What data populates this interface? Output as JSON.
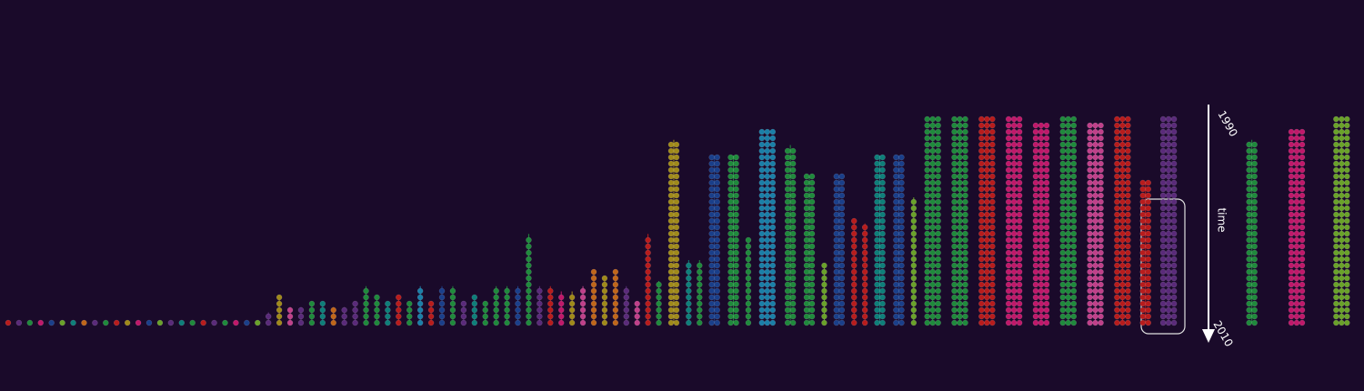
{
  "axis": {
    "label": "time",
    "start": "1990",
    "end": "2010",
    "from": 1990,
    "to": 2010
  },
  "columns": [
    {
      "color": "#b81c1c",
      "start": 2010
    },
    {
      "color": "#5a2a7a",
      "start": 2010
    },
    {
      "color": "#1f8a3c",
      "start": 2010
    },
    {
      "color": "#c0186a",
      "start": 2010
    },
    {
      "color": "#1a3f8a",
      "start": 2010
    },
    {
      "color": "#6aa22a",
      "start": 2010
    },
    {
      "color": "#0e7f7a",
      "start": 2010
    },
    {
      "color": "#c0661a",
      "start": 2010
    },
    {
      "color": "#5a2a7a",
      "start": 2010
    },
    {
      "color": "#1f8a3c",
      "start": 2010
    },
    {
      "color": "#b81c1c",
      "start": 2010
    },
    {
      "color": "#a08a1a",
      "start": 2010
    },
    {
      "color": "#c0186a",
      "start": 2010
    },
    {
      "color": "#1a3f8a",
      "start": 2010
    },
    {
      "color": "#6aa22a",
      "start": 2010
    },
    {
      "color": "#5a2a7a",
      "start": 2010
    },
    {
      "color": "#0e7f7a",
      "start": 2010
    },
    {
      "color": "#1f8a3c",
      "start": 2010
    },
    {
      "color": "#b81c1c",
      "start": 2010
    },
    {
      "color": "#5a2a7a",
      "start": 2010
    },
    {
      "color": "#1f8a3c",
      "start": 2010
    },
    {
      "color": "#c0186a",
      "start": 2010
    },
    {
      "color": "#1a3f8a",
      "start": 2010
    },
    {
      "color": "#6aa22a",
      "start": 2010
    },
    {
      "color": "#5a2a7a",
      "start": 2009
    },
    {
      "color": "#a08a1a",
      "start": 2007.5
    },
    {
      "color": "#c0408a",
      "start": 2008.5
    },
    {
      "color": "#5a2a7a",
      "start": 2008.5
    },
    {
      "color": "#1f8a3c",
      "start": 2008
    },
    {
      "color": "#0e7f7a",
      "start": 2008
    },
    {
      "color": "#c0661a",
      "start": 2008.5
    },
    {
      "color": "#5a2a7a",
      "start": 2008.5
    },
    {
      "color": "#5a2a7a",
      "start": 2008
    },
    {
      "color": "#1f8a3c",
      "start": 2006.5
    },
    {
      "color": "#1f8a3c",
      "start": 2007.5
    },
    {
      "color": "#0e7f7a",
      "start": 2008
    },
    {
      "color": "#b81c1c",
      "start": 2007.5
    },
    {
      "color": "#1f8a3c",
      "start": 2008
    },
    {
      "color": "#1a7fa8",
      "start": 2006.5
    },
    {
      "color": "#b81c1c",
      "start": 2008
    },
    {
      "color": "#1a3f8a",
      "start": 2006.5
    },
    {
      "color": "#1f8a3c",
      "start": 2006.5
    },
    {
      "color": "#5a2a7a",
      "start": 2008
    },
    {
      "color": "#0e7f7a",
      "start": 2007.5
    },
    {
      "color": "#1f8a3c",
      "start": 2008
    },
    {
      "color": "#1f8a3c",
      "start": 2006.5
    },
    {
      "color": "#1f8a3c",
      "start": 2006.5
    },
    {
      "color": "#1a3f8a",
      "start": 2006.5
    },
    {
      "color": "#1f8a3c",
      "start": 2001.5
    },
    {
      "color": "#5a2a7a",
      "start": 2006.5
    },
    {
      "color": "#b81c1c",
      "start": 2006.5
    },
    {
      "color": "#c0186a",
      "start": 2007
    },
    {
      "color": "#a08a1a",
      "start": 2007
    },
    {
      "color": "#c0408a",
      "start": 2006.5
    },
    {
      "color": "#c0661a",
      "start": 2005
    },
    {
      "color": "#a08a1a",
      "start": 2005.5
    },
    {
      "color": "#c0661a",
      "start": 2005
    },
    {
      "color": "#5a2a7a",
      "start": 2006.5
    },
    {
      "color": "#c0408a",
      "start": 2008
    },
    {
      "color": "#b81c1c",
      "start": 2001.5
    },
    {
      "color": "#1f8a3c",
      "start": 2006
    },
    {
      "color": "#a08a1a",
      "start": 1992.5
    },
    {
      "color": "#0e7f7a",
      "start": 2004
    },
    {
      "color": "#1f8a3c",
      "start": 2004
    },
    {
      "color": "#1a3f8a",
      "start": 1994
    },
    {
      "color": "#1f8a3c",
      "start": 1994
    },
    {
      "color": "#1f8a3c",
      "start": 2002
    },
    {
      "color": "#1a7fa8",
      "start": 1991.5
    },
    {
      "color": "#1f8a3c",
      "start": 1993
    },
    {
      "color": "#1f8a3c",
      "start": 1996
    },
    {
      "color": "#6aa22a",
      "start": 2004.5
    },
    {
      "color": "#1a3f8a",
      "start": 1996
    },
    {
      "color": "#b81c1c",
      "start": 2000
    },
    {
      "color": "#b81c1c",
      "start": 2000.5
    },
    {
      "color": "#0e7f7a",
      "start": 1994
    },
    {
      "color": "#1a3f8a",
      "start": 1994
    },
    {
      "color": "#6aa22a",
      "start": 1998
    },
    {
      "color": "#1f8a3c",
      "start": 1990.5
    },
    {
      "color": "#1f8a3c",
      "start": 1990.5
    },
    {
      "color": "#b81c1c",
      "start": 1990.5
    },
    {
      "color": "#c0186a",
      "start": 1990.5
    },
    {
      "color": "#c0186a",
      "start": 1991
    },
    {
      "color": "#1f8a3c",
      "start": 1990.5
    },
    {
      "color": "#c0408a",
      "start": 1991
    },
    {
      "color": "#b81c1c",
      "start": 1990.5
    },
    {
      "color": "#b81c1c",
      "start": 1996.5
    },
    {
      "color": "#5a2a7a",
      "start": 1990.5
    }
  ],
  "after_axis": [
    {
      "color": "#1f8a3c",
      "start": 1992.5
    },
    {
      "color": "#c0186a",
      "start": 1991.5
    },
    {
      "color": "#6aa22a",
      "start": 1990.5
    }
  ]
}
